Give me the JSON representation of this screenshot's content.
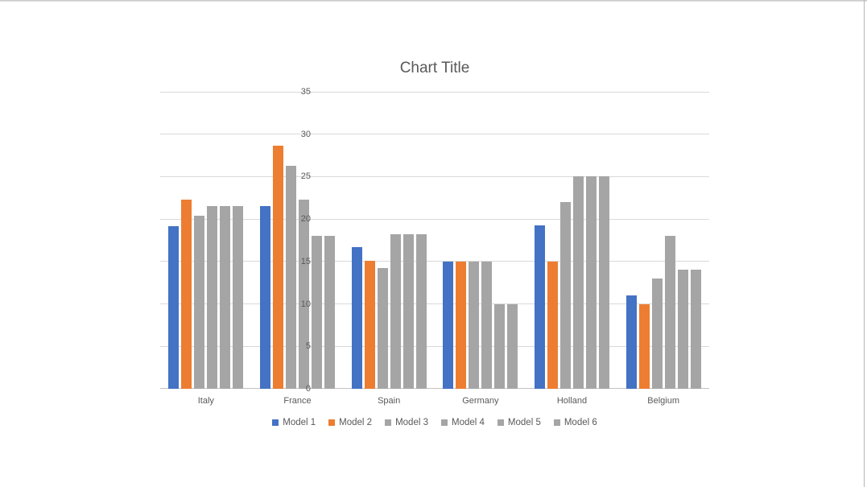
{
  "window": {
    "top_edge_color": "#bdbdbd",
    "right_edge_color": "#b7b7b7",
    "background": "#ffffff"
  },
  "text_color": "#595959",
  "gridline_color": "#d9d9d9",
  "axis_line_color": "#c3c3c3",
  "chart_data": {
    "type": "bar",
    "title": "Chart Title",
    "categories": [
      "Italy",
      "France",
      "Spain",
      "Germany",
      "Holland",
      "Belgium"
    ],
    "series": [
      {
        "name": "Model 1",
        "color": "#4472C4",
        "values": [
          19.2,
          21.5,
          16.7,
          15,
          19.3,
          11
        ]
      },
      {
        "name": "Model 2",
        "color": "#ED7D31",
        "values": [
          22.3,
          28.6,
          15.1,
          15,
          15,
          10
        ]
      },
      {
        "name": "Model 3",
        "color": "#A5A5A5",
        "values": [
          20.4,
          26.3,
          14.2,
          15,
          22,
          13
        ]
      },
      {
        "name": "Model 4",
        "color": "#A5A5A5",
        "values": [
          21.5,
          22.3,
          18.2,
          15,
          25,
          18
        ]
      },
      {
        "name": "Model 5",
        "color": "#A5A5A5",
        "values": [
          21.5,
          18,
          18.2,
          10,
          25,
          14
        ]
      },
      {
        "name": "Model 6",
        "color": "#A5A5A5",
        "values": [
          21.5,
          18,
          18.2,
          10,
          25,
          14
        ]
      }
    ],
    "ylim": [
      0,
      35
    ],
    "yticks": [
      0,
      5,
      10,
      15,
      20,
      25,
      30,
      35
    ],
    "xlabel": "",
    "ylabel": "",
    "grid": true,
    "legend_position": "bottom"
  }
}
